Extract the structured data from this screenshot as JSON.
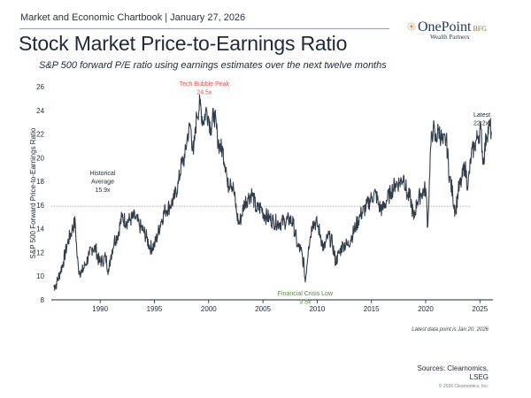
{
  "header": {
    "chartbook_line": "Market and Economic Chartbook | January 27, 2026",
    "title": "Stock Market Price-to-Earnings Ratio",
    "subtitle": "S&P 500 forward P/E ratio using earnings estimates over the next twelve months"
  },
  "logo": {
    "name": "OnePoint",
    "suffix": "BFG",
    "tagline": "Wealth Partners",
    "icon": "sunburst-icon"
  },
  "footer": {
    "note": "Latest data point is Jan 20, 2026",
    "source_line1": "Sources: Clearnomics,",
    "source_line2": "LSEG",
    "copyright": "© 2026 Clearnomics, Inc."
  },
  "colors": {
    "series": "#2f3d4c",
    "average_line": "#e8848a",
    "peak_label": "#d9534f",
    "trough_label": "#4f8f3a",
    "axis": "#1e2a3a"
  },
  "chart_data": {
    "type": "line",
    "title": "Stock Market Price-to-Earnings Ratio",
    "subtitle": "S&P 500 forward P/E ratio using earnings estimates over the next twelve months",
    "xlabel": "",
    "ylabel": "S&P 500 Forward Price-to-Earnings Ratio",
    "xlim": [
      1985.5,
      2026.2
    ],
    "ylim": [
      8,
      26
    ],
    "x_ticks": [
      1990,
      1995,
      2000,
      2005,
      2010,
      2015,
      2020,
      2025
    ],
    "y_ticks": [
      8,
      10,
      12,
      14,
      16,
      18,
      20,
      22,
      24,
      26
    ],
    "grid": false,
    "legend": "none",
    "reference_line": {
      "y": 15.9,
      "style": "dotted"
    },
    "annotations": [
      {
        "text": [
          "Tech Bubble Peak",
          "24.5x"
        ],
        "x": 1999.6,
        "y": 24.5,
        "kind": "peak"
      },
      {
        "text": [
          "Historical",
          "Average",
          "15.9x"
        ],
        "x": 1986.6,
        "y": 15.9,
        "kind": "average"
      },
      {
        "text": [
          "Financial Crisis Low",
          "9.5x"
        ],
        "x": 2008.9,
        "y": 9.5,
        "kind": "trough"
      },
      {
        "text": [
          "Latest",
          "22.2x"
        ],
        "x": 2026.1,
        "y": 22.2,
        "kind": "latest"
      }
    ],
    "series": [
      {
        "x": [
          1985.7,
          1986.0,
          1986.3,
          1986.6,
          1987.0,
          1987.4,
          1987.7,
          1987.85,
          1988.0,
          1988.3,
          1988.6,
          1989.0,
          1989.3,
          1989.6,
          1989.9,
          1990.2,
          1990.5,
          1990.8,
          1991.0,
          1991.3,
          1991.6,
          1992.0,
          1992.4,
          1992.8,
          1993.2,
          1993.6,
          1994.0,
          1994.3,
          1994.6,
          1995.0,
          1995.3,
          1995.6,
          1996.0,
          1996.4,
          1996.8,
          1997.2,
          1997.5,
          1997.8,
          1998.0,
          1998.3,
          1998.6,
          1998.9,
          1999.2,
          1999.5,
          1999.8,
          2000.0,
          2000.2,
          2000.5,
          2000.8,
          2001.0,
          2001.3,
          2001.6,
          2001.75,
          2002.0,
          2002.3,
          2002.6,
          2002.8,
          2003.0,
          2003.3,
          2003.6,
          2004.0,
          2004.4,
          2004.8,
          2005.2,
          2005.6,
          2006.0,
          2006.5,
          2007.0,
          2007.5,
          2007.8,
          2008.2,
          2008.5,
          2008.8,
          2008.9,
          2009.2,
          2009.6,
          2010.0,
          2010.3,
          2010.6,
          2011.0,
          2011.4,
          2011.7,
          2012.0,
          2012.4,
          2012.8,
          2013.2,
          2013.6,
          2014.0,
          2014.5,
          2015.0,
          2015.4,
          2015.7,
          2016.0,
          2016.4,
          2016.8,
          2017.2,
          2017.6,
          2018.0,
          2018.3,
          2018.6,
          2018.9,
          2019.2,
          2019.6,
          2020.0,
          2020.2,
          2020.45,
          2020.7,
          2020.9,
          2021.2,
          2021.6,
          2021.9,
          2022.2,
          2022.5,
          2022.75,
          2023.0,
          2023.3,
          2023.6,
          2023.9,
          2024.2,
          2024.5,
          2024.8,
          2025.1,
          2025.3,
          2025.6,
          2025.9,
          2026.05
        ],
        "values": [
          9.1,
          9.4,
          10.3,
          11.2,
          12.8,
          13.9,
          14.6,
          12.0,
          10.6,
          10.3,
          10.9,
          11.8,
          12.4,
          12.3,
          11.2,
          11.3,
          11.6,
          10.4,
          11.8,
          13.0,
          13.4,
          15.0,
          14.6,
          14.8,
          15.0,
          14.3,
          13.8,
          13.2,
          12.4,
          12.6,
          13.5,
          14.6,
          15.6,
          15.9,
          16.5,
          17.8,
          19.5,
          20.0,
          21.6,
          22.8,
          20.3,
          23.6,
          24.5,
          23.0,
          24.1,
          23.4,
          22.5,
          23.8,
          21.8,
          21.0,
          20.6,
          19.2,
          17.5,
          18.2,
          17.3,
          15.2,
          14.4,
          15.0,
          16.2,
          16.6,
          17.0,
          15.6,
          15.8,
          15.1,
          14.9,
          14.6,
          14.5,
          14.6,
          14.8,
          14.4,
          12.5,
          12.2,
          10.8,
          9.5,
          12.5,
          14.6,
          14.4,
          13.5,
          12.2,
          13.4,
          12.8,
          11.2,
          11.9,
          12.7,
          12.6,
          13.4,
          14.3,
          15.2,
          15.8,
          16.6,
          17.0,
          15.9,
          15.6,
          16.4,
          17.1,
          17.8,
          17.9,
          18.4,
          16.8,
          16.6,
          14.8,
          16.3,
          17.0,
          17.4,
          14.2,
          20.8,
          22.6,
          21.4,
          22.4,
          21.2,
          21.6,
          18.4,
          16.8,
          15.4,
          17.2,
          18.0,
          19.4,
          17.6,
          20.2,
          21.0,
          21.8,
          22.4,
          19.5,
          21.9,
          22.7,
          22.2
        ]
      }
    ]
  }
}
